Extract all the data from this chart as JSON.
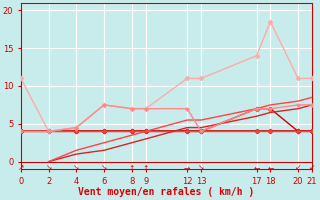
{
  "background_color": "#c8ecec",
  "grid_color": "#ffffff",
  "xlabel": "Vent moyen/en rafales ( km/h )",
  "xlabel_color": "#dd0000",
  "xlim": [
    0,
    21
  ],
  "ylim": [
    -1,
    21
  ],
  "yticks": [
    0,
    5,
    10,
    15,
    20
  ],
  "xticks": [
    0,
    2,
    4,
    6,
    8,
    9,
    12,
    13,
    17,
    18,
    20,
    21
  ],
  "lines": [
    {
      "x": [
        0,
        2,
        4,
        6,
        8,
        9,
        12,
        13,
        17,
        18,
        20,
        21
      ],
      "y": [
        4,
        4,
        4,
        4,
        4,
        4,
        4,
        4,
        4,
        4,
        4,
        4
      ],
      "color": "#cc0000",
      "lw": 1.2,
      "marker": "D",
      "ms": 2.5
    },
    {
      "x": [
        0,
        2,
        4,
        6,
        8,
        9,
        12,
        13,
        17,
        18,
        20,
        21
      ],
      "y": [
        4,
        4,
        4,
        4,
        4,
        4,
        4,
        4,
        7,
        7,
        4,
        4
      ],
      "color": "#cc0000",
      "lw": 1.0,
      "marker": "D",
      "ms": 2.5
    },
    {
      "x": [
        0,
        2,
        4,
        6,
        8,
        9,
        12,
        13,
        17,
        18,
        20,
        21
      ],
      "y": [
        4,
        4,
        4,
        4,
        4,
        4,
        4,
        4,
        4,
        4,
        4,
        4
      ],
      "color": "#ee4444",
      "lw": 1.0,
      "marker": "D",
      "ms": 2.0
    },
    {
      "x": [
        2,
        4,
        6,
        8,
        9,
        12,
        13,
        17,
        18,
        20,
        21
      ],
      "y": [
        0,
        1,
        1.5,
        2.5,
        3,
        4.5,
        4.5,
        6,
        6.5,
        7,
        7.5
      ],
      "color": "#dd2222",
      "lw": 1.0,
      "marker": null,
      "ms": 0
    },
    {
      "x": [
        2,
        4,
        6,
        8,
        9,
        12,
        13,
        17,
        18,
        20,
        21
      ],
      "y": [
        0,
        1.5,
        2.5,
        3.5,
        4,
        5.5,
        5.5,
        7,
        7.5,
        8,
        8.5
      ],
      "color": "#ff4444",
      "lw": 1.0,
      "marker": null,
      "ms": 0
    },
    {
      "x": [
        0,
        2,
        4,
        6,
        8,
        9,
        12,
        13,
        17,
        18,
        20,
        21
      ],
      "y": [
        11,
        4,
        4.5,
        7.5,
        7,
        7,
        11,
        11,
        14,
        18.5,
        11,
        11
      ],
      "color": "#ffaaaa",
      "lw": 1.0,
      "marker": "D",
      "ms": 2.5
    },
    {
      "x": [
        0,
        2,
        4,
        6,
        8,
        9,
        12,
        13,
        17,
        18,
        20,
        21
      ],
      "y": [
        4,
        4,
        4.5,
        7.5,
        7,
        7,
        7,
        4,
        7,
        7,
        7.5,
        7.5
      ],
      "color": "#ff8888",
      "lw": 1.0,
      "marker": "D",
      "ms": 2.0
    }
  ],
  "wind_dir_chars": [
    "↗",
    "↘",
    "↘",
    "↘",
    "↑",
    "↑",
    "→",
    "↘",
    "←",
    "←",
    "↙",
    "↙"
  ],
  "wind_dir_x": [
    0,
    2,
    4,
    6,
    8,
    9,
    12,
    13,
    17,
    18,
    20,
    21
  ]
}
